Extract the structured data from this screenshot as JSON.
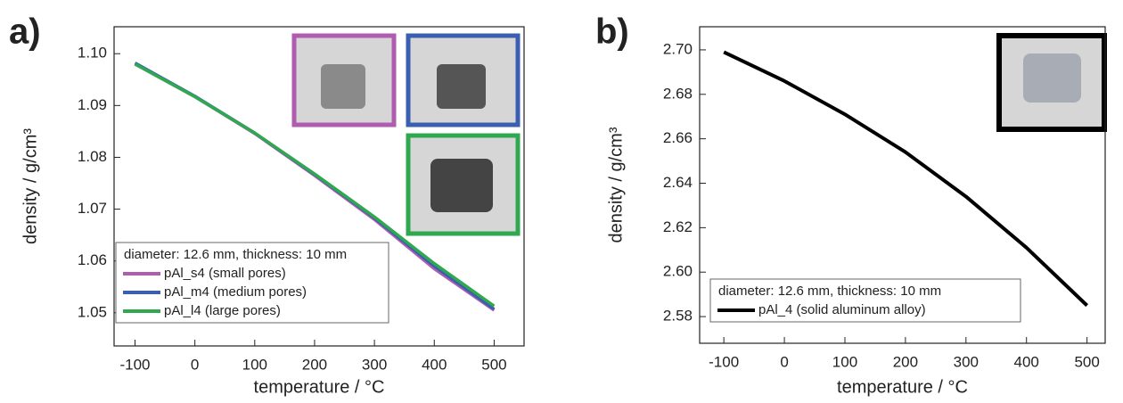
{
  "chart_data": [
    {
      "type": "line",
      "panel_label": "a)",
      "xlabel": "temperature / °C",
      "ylabel": "density / g/cm³",
      "legend_title": "diameter: 12.6 mm, thickness: 10 mm",
      "legend": "lower left",
      "x": [
        -100,
        0,
        100,
        200,
        300,
        400,
        500
      ],
      "series": [
        {
          "name": "pAl_s4 (small pores)",
          "color": "#b05cb0",
          "values": [
            1.098,
            1.0917,
            1.0846,
            1.0765,
            1.068,
            1.0585,
            1.0505
          ]
        },
        {
          "name": "pAl_m4 (medium pores)",
          "color": "#3a5fb0",
          "values": [
            1.0982,
            1.0918,
            1.0847,
            1.0767,
            1.0683,
            1.059,
            1.0507
          ]
        },
        {
          "name": "pAl_l4 (large pores)",
          "color": "#2fa84f",
          "values": [
            1.098,
            1.0917,
            1.0847,
            1.0768,
            1.0685,
            1.0595,
            1.0513
          ]
        }
      ],
      "xlim": [
        -135,
        550
      ],
      "xticks": [
        -100,
        0,
        100,
        200,
        300,
        400,
        500
      ],
      "ylim": [
        1.0436,
        1.1052
      ],
      "yticks": [
        {
          "value": 1.05,
          "label": "1.05"
        },
        {
          "value": 1.06,
          "label": "1.06"
        },
        {
          "value": 1.07,
          "label": "1.07"
        },
        {
          "value": 1.08,
          "label": "1.08"
        },
        {
          "value": 1.09,
          "label": "1.09"
        },
        {
          "value": 1.1,
          "label": "1.10"
        }
      ]
    },
    {
      "type": "line",
      "panel_label": "b)",
      "xlabel": "temperature / °C",
      "ylabel": "density / g/cm³",
      "legend_title": "diameter: 12.6 mm, thickness: 10 mm",
      "legend": "lower left",
      "x": [
        -100,
        0,
        100,
        200,
        300,
        400,
        500
      ],
      "series": [
        {
          "name": "pAl_4 (solid aluminum alloy)",
          "color": "#000000",
          "values": [
            2.699,
            2.686,
            2.671,
            2.654,
            2.634,
            2.611,
            2.585
          ]
        }
      ],
      "xlim": [
        -140,
        530
      ],
      "xticks": [
        -100,
        0,
        100,
        200,
        300,
        400,
        500
      ],
      "ylim": [
        2.568,
        2.7104
      ],
      "yticks": [
        {
          "value": 2.58,
          "label": "2.58"
        },
        {
          "value": 2.6,
          "label": "2.60"
        },
        {
          "value": 2.62,
          "label": "2.62"
        },
        {
          "value": 2.64,
          "label": "2.64"
        },
        {
          "value": 2.66,
          "label": "2.66"
        },
        {
          "value": 2.68,
          "label": "2.68"
        },
        {
          "value": 2.7,
          "label": "2.70"
        }
      ]
    }
  ]
}
